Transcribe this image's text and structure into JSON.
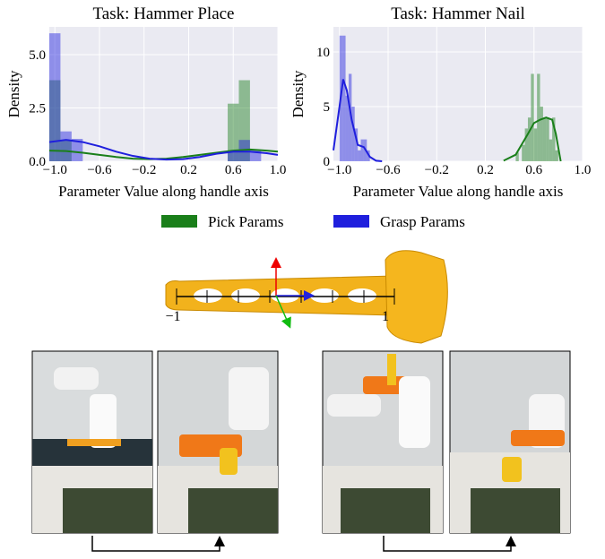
{
  "chart_data": [
    {
      "type": "histogram",
      "title": "Task: Hammer Place",
      "xlabel": "Parameter Value along handle axis",
      "ylabel": "Density",
      "xlim": [
        -1.05,
        1.0
      ],
      "ylim": [
        0,
        6.3
      ],
      "xticks": [
        {
          "value": -1.0,
          "label": "−1.0"
        },
        {
          "value": -0.6,
          "label": "−0.6"
        },
        {
          "value": -0.2,
          "label": "−0.2"
        },
        0.2,
        0.6,
        {
          "value": 1.0,
          "label": "1.0"
        }
      ],
      "yticks": [
        {
          "value": 0,
          "label": "0.0"
        },
        2.5,
        {
          "value": 5,
          "label": "5.0"
        }
      ],
      "grid": true,
      "series": [
        {
          "name": "Pick Params",
          "color": "#1a7f1a",
          "bins": [
            -1.05,
            -0.95,
            -0.85,
            0.55,
            0.65,
            0.75,
            0.85
          ],
          "values": [
            3.8,
            1.0,
            0,
            2.7,
            3.8,
            0
          ],
          "kde_x": [
            -1.05,
            -0.9,
            -0.75,
            -0.6,
            -0.45,
            -0.3,
            -0.15,
            0,
            0.15,
            0.3,
            0.45,
            0.6,
            0.75,
            0.9,
            1.0
          ],
          "kde_values": [
            0.5,
            0.48,
            0.4,
            0.3,
            0.2,
            0.12,
            0.1,
            0.12,
            0.2,
            0.3,
            0.4,
            0.5,
            0.55,
            0.5,
            0.45
          ]
        },
        {
          "name": "Grasp Params",
          "color": "#1f1fdd",
          "bins": [
            -1.05,
            -0.95,
            -0.85,
            -0.75,
            0.55,
            0.65,
            0.75,
            0.85
          ],
          "values": [
            6.0,
            1.4,
            1.05,
            0,
            0.5,
            1.0,
            0.5
          ],
          "kde_x": [
            -1.05,
            -0.9,
            -0.75,
            -0.6,
            -0.45,
            -0.3,
            -0.15,
            0,
            0.15,
            0.3,
            0.45,
            0.6,
            0.75,
            0.9,
            1.0
          ],
          "kde_values": [
            0.9,
            1.0,
            0.9,
            0.7,
            0.45,
            0.25,
            0.12,
            0.08,
            0.1,
            0.2,
            0.35,
            0.45,
            0.45,
            0.38,
            0.3
          ]
        }
      ]
    },
    {
      "type": "histogram",
      "title": "Task: Hammer Nail",
      "xlabel": "Parameter Value along handle axis",
      "ylabel": "Density",
      "xlim": [
        -1.05,
        1.0
      ],
      "ylim": [
        0,
        12.3
      ],
      "xticks": [
        {
          "value": -1.0,
          "label": "−1.0"
        },
        {
          "value": -0.6,
          "label": "−0.6"
        },
        {
          "value": -0.2,
          "label": "−0.2"
        },
        0.2,
        0.6,
        {
          "value": 1.0,
          "label": "1.0"
        }
      ],
      "yticks": [
        0,
        5,
        10
      ],
      "grid": true,
      "series": [
        {
          "name": "Pick Params",
          "color": "#1a7f1a",
          "bins": [
            0.45,
            0.475,
            0.5,
            0.525,
            0.55,
            0.575,
            0.6,
            0.625,
            0.65,
            0.675,
            0.7,
            0.725,
            0.75,
            0.775,
            0.8
          ],
          "values": [
            0.8,
            0,
            1.5,
            3,
            4,
            8,
            3,
            8,
            5,
            4,
            4,
            2,
            4,
            1
          ],
          "kde_x": [
            0.35,
            0.45,
            0.55,
            0.6,
            0.65,
            0.7,
            0.75,
            0.78,
            0.82
          ],
          "kde_values": [
            0.05,
            0.6,
            2.5,
            3.5,
            3.8,
            4,
            3.8,
            2.5,
            0
          ]
        },
        {
          "name": "Grasp Params",
          "color": "#1f1fdd",
          "bins": [
            -1.0,
            -0.975,
            -0.95,
            -0.925,
            -0.9,
            -0.875,
            -0.85,
            -0.825,
            -0.8,
            -0.775,
            -0.75
          ],
          "values": [
            11.5,
            11.5,
            6,
            8,
            5,
            3,
            1,
            2,
            2,
            1
          ],
          "kde_x": [
            -1.05,
            -1.0,
            -0.97,
            -0.94,
            -0.9,
            -0.85,
            -0.8,
            -0.75,
            -0.7,
            -0.65
          ],
          "kde_values": [
            1,
            5,
            7.5,
            6.5,
            3.8,
            1.5,
            1.3,
            0.4,
            0.05,
            0
          ]
        }
      ]
    }
  ],
  "diagram": {
    "axis_labels": [
      "−1",
      "1"
    ]
  }
}
